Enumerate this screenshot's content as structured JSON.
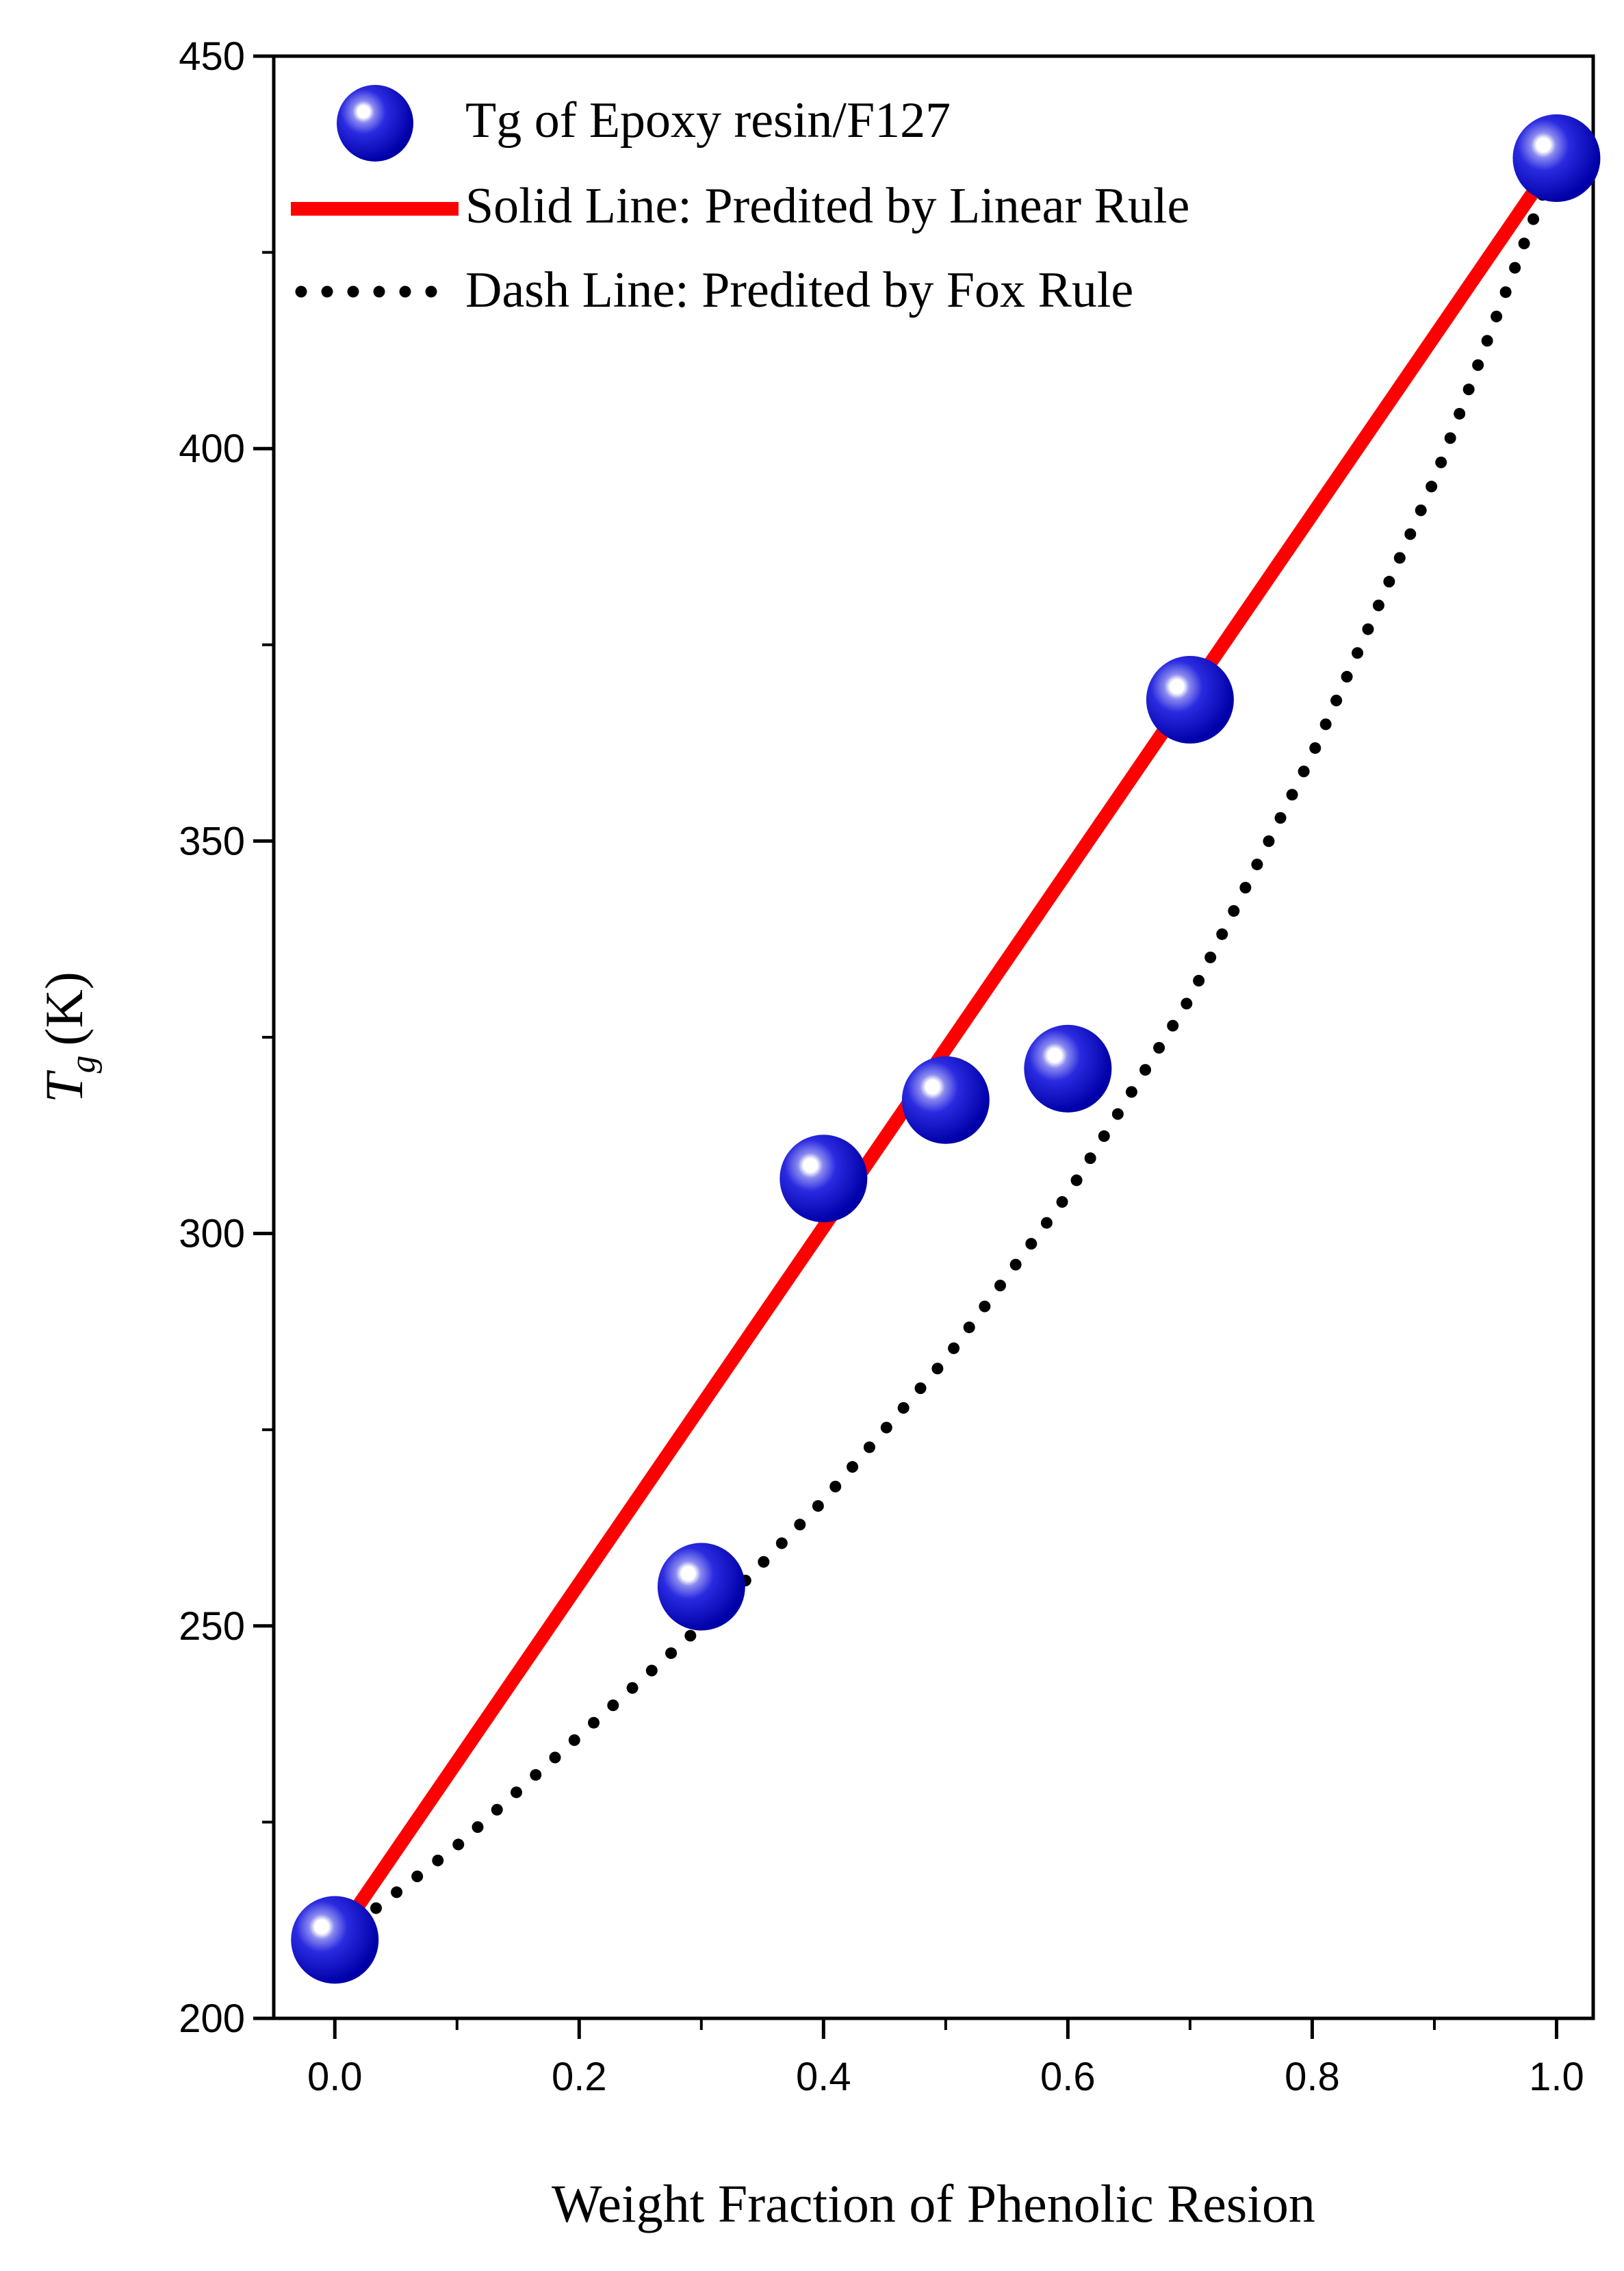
{
  "chart_data": {
    "type": "scatter",
    "xlabel": "Weight Fraction of Phenolic Resion",
    "ylabel_main": "T",
    "ylabel_sub": "g",
    "ylabel_unit": "(K)",
    "xlim": [
      -0.05,
      1.03
    ],
    "ylim": [
      200,
      450
    ],
    "x_ticks": [
      0.0,
      0.2,
      0.4,
      0.6,
      0.8,
      1.0
    ],
    "x_tick_labels": [
      "0.0",
      "0.2",
      "0.4",
      "0.6",
      "0.8",
      "1.0"
    ],
    "y_ticks": [
      200,
      250,
      300,
      350,
      400,
      450
    ],
    "y_tick_labels": [
      "200",
      "250",
      "300",
      "350",
      "400",
      "450"
    ],
    "grid": false,
    "legend_position": "top-left",
    "series": [
      {
        "name": "Tg of Epoxy resin/F127",
        "kind": "marker",
        "color": "#1f1fd6",
        "x": [
          0.0,
          0.3,
          0.4,
          0.5,
          0.6,
          0.7,
          1.0
        ],
        "y": [
          210,
          255,
          307,
          317,
          321,
          368,
          437
        ]
      },
      {
        "name": "Solid Line: Predited by Linear Rule",
        "kind": "solid-line",
        "color": "#ff0000",
        "x": [
          0.0,
          1.0
        ],
        "y": [
          210,
          437
        ]
      },
      {
        "name": "Dash Line: Predited by Fox Rule",
        "kind": "dotted-line",
        "color": "#000000",
        "x": [
          0.0,
          0.1,
          0.2,
          0.3,
          0.4,
          0.5,
          0.6,
          0.7,
          0.8,
          0.9,
          1.0
        ],
        "y": [
          210,
          222,
          236,
          250,
          266,
          284,
          305,
          330,
          361,
          396,
          437
        ]
      }
    ]
  }
}
